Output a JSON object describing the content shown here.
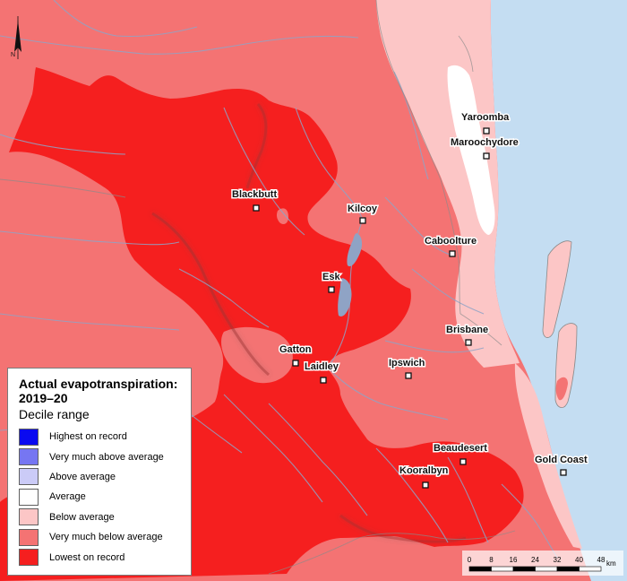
{
  "legend": {
    "title_line1": "Actual evapotranspiration:",
    "title_line2": "2019–20",
    "subtitle": "Decile range",
    "items": [
      {
        "label": "Highest on record",
        "color": "#0a0af0"
      },
      {
        "label": "Very much above average",
        "color": "#7676f2"
      },
      {
        "label": "Above average",
        "color": "#cbcbf7"
      },
      {
        "label": "Average",
        "color": "#ffffff"
      },
      {
        "label": "Below average",
        "color": "#fcc6c6"
      },
      {
        "label": "Very much below average",
        "color": "#f47373"
      },
      {
        "label": "Lowest on record",
        "color": "#f51f1f"
      }
    ]
  },
  "towns": [
    {
      "name": "Yaroomba"
    },
    {
      "name": "Maroochydore"
    },
    {
      "name": "Blackbutt"
    },
    {
      "name": "Kilcoy"
    },
    {
      "name": "Caboolture"
    },
    {
      "name": "Esk"
    },
    {
      "name": "Brisbane"
    },
    {
      "name": "Gatton"
    },
    {
      "name": "Laidley"
    },
    {
      "name": "Ipswich"
    },
    {
      "name": "Beaudesert"
    },
    {
      "name": "Gold Coast"
    },
    {
      "name": "Kooralbyn"
    }
  ],
  "scale_bar": {
    "ticks": [
      "0",
      "8",
      "16",
      "24",
      "32",
      "40",
      "48"
    ],
    "unit": "km"
  },
  "north_arrow": {
    "label": "N"
  },
  "colors": {
    "ocean": "#c4ddf2",
    "river": "#8fa3c5",
    "border": "#8a8a8a"
  }
}
